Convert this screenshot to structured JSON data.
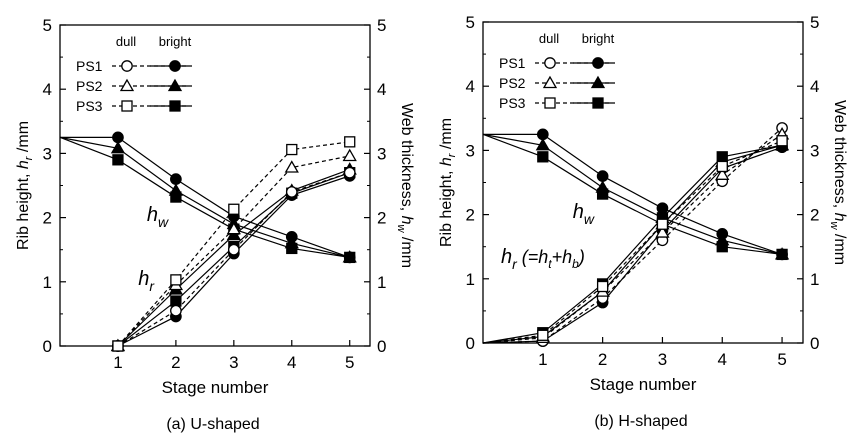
{
  "chart_data": [
    {
      "type": "line",
      "caption": "(a) U-shaped",
      "xlabel": "Stage number",
      "ylabel_left": "Rib height, h_r /mm",
      "ylabel_right": "Web thickness, h_w /mm",
      "xlim": [
        0,
        5.35
      ],
      "ylim_left": [
        0,
        5
      ],
      "ylim_right": [
        0,
        5
      ],
      "x_ticks": [
        1,
        2,
        3,
        4,
        5
      ],
      "y_ticks": [
        0,
        1,
        2,
        3,
        4,
        5
      ],
      "legend": {
        "header": [
          "dull",
          "bright"
        ],
        "entries": [
          {
            "label": "PS1",
            "marker": "circle"
          },
          {
            "label": "PS2",
            "marker": "triangle"
          },
          {
            "label": "PS3",
            "marker": "square"
          }
        ]
      },
      "annotations": [
        {
          "text": "h",
          "sub": "w",
          "x": 1.5,
          "y": 1.95
        },
        {
          "text": "h",
          "sub": "r",
          "x": 1.35,
          "y": 0.95
        }
      ],
      "series": [
        {
          "group": "hw",
          "finish": "bright",
          "marker": "circle",
          "x": [
            0,
            1,
            2,
            3,
            4,
            5
          ],
          "y": [
            3.25,
            3.25,
            2.6,
            2.02,
            1.7,
            1.38
          ]
        },
        {
          "group": "hw",
          "finish": "bright",
          "marker": "triangle",
          "x": [
            0,
            1,
            2,
            3,
            4,
            5
          ],
          "y": [
            3.25,
            3.08,
            2.42,
            1.9,
            1.6,
            1.38
          ]
        },
        {
          "group": "hw",
          "finish": "bright",
          "marker": "square",
          "x": [
            0,
            1,
            2,
            3,
            4,
            5
          ],
          "y": [
            3.25,
            2.9,
            2.32,
            1.82,
            1.52,
            1.38
          ]
        },
        {
          "group": "hr",
          "finish": "bright",
          "marker": "circle",
          "x": [
            1,
            2,
            3,
            4,
            5
          ],
          "y": [
            0,
            0.46,
            1.44,
            2.35,
            2.65
          ]
        },
        {
          "group": "hr",
          "finish": "bright",
          "marker": "triangle",
          "x": [
            1,
            2,
            3,
            4,
            5
          ],
          "y": [
            0,
            0.88,
            1.73,
            2.42,
            2.75
          ]
        },
        {
          "group": "hr",
          "finish": "bright",
          "marker": "square",
          "x": [
            1,
            2,
            3,
            4,
            5
          ],
          "y": [
            0,
            0.7,
            1.55,
            2.38,
            2.7
          ]
        },
        {
          "group": "hr",
          "finish": "dull",
          "marker": "circle",
          "x": [
            1,
            2,
            3,
            4,
            5
          ],
          "y": [
            0,
            0.55,
            1.5,
            2.4,
            2.7
          ]
        },
        {
          "group": "hr",
          "finish": "dull",
          "marker": "triangle",
          "x": [
            1,
            2,
            3,
            4,
            5
          ],
          "y": [
            0,
            0.95,
            1.82,
            2.78,
            2.96
          ]
        },
        {
          "group": "hr",
          "finish": "dull",
          "marker": "square",
          "x": [
            1,
            2,
            3,
            4,
            5
          ],
          "y": [
            0,
            1.03,
            2.13,
            3.06,
            3.18
          ]
        }
      ]
    },
    {
      "type": "line",
      "caption": "(b) H-shaped",
      "xlabel": "Stage number",
      "ylabel_left": "Rib height, h_r /mm",
      "ylabel_right": "Web thickness, h_w /mm",
      "xlim": [
        0,
        5.35
      ],
      "ylim_left": [
        0,
        5
      ],
      "ylim_right": [
        0,
        5
      ],
      "x_ticks": [
        1,
        2,
        3,
        4,
        5
      ],
      "y_ticks": [
        0,
        1,
        2,
        3,
        4,
        5
      ],
      "legend": {
        "header": [
          "dull",
          "bright"
        ],
        "entries": [
          {
            "label": "PS1",
            "marker": "circle"
          },
          {
            "label": "PS2",
            "marker": "triangle"
          },
          {
            "label": "PS3",
            "marker": "square"
          }
        ]
      },
      "annotations": [
        {
          "text": "h",
          "sub": "w",
          "x": 1.5,
          "y": 1.95
        },
        {
          "text": "h",
          "sub": "r",
          "tail": " (=h",
          "sub2": "t",
          "tail2": "+h",
          "sub3": "b",
          "tail3": ")",
          "x": 0.3,
          "y": 1.25
        }
      ],
      "series": [
        {
          "group": "hw",
          "finish": "bright",
          "marker": "circle",
          "x": [
            0,
            1,
            2,
            3,
            4,
            5
          ],
          "y": [
            3.25,
            3.25,
            2.6,
            2.1,
            1.7,
            1.38
          ]
        },
        {
          "group": "hw",
          "finish": "bright",
          "marker": "triangle",
          "x": [
            0,
            1,
            2,
            3,
            4,
            5
          ],
          "y": [
            3.25,
            3.08,
            2.42,
            1.95,
            1.6,
            1.38
          ]
        },
        {
          "group": "hw",
          "finish": "bright",
          "marker": "square",
          "x": [
            0,
            1,
            2,
            3,
            4,
            5
          ],
          "y": [
            3.25,
            2.9,
            2.32,
            1.85,
            1.5,
            1.38
          ]
        },
        {
          "group": "hr",
          "finish": "bright",
          "marker": "circle",
          "x": [
            0,
            1,
            2,
            3,
            4,
            5
          ],
          "y": [
            0,
            0.03,
            0.63,
            1.75,
            2.72,
            3.05
          ]
        },
        {
          "group": "hr",
          "finish": "bright",
          "marker": "triangle",
          "x": [
            0,
            1,
            2,
            3,
            4,
            5
          ],
          "y": [
            0,
            0.1,
            0.8,
            1.85,
            2.82,
            3.08
          ]
        },
        {
          "group": "hr",
          "finish": "bright",
          "marker": "square",
          "x": [
            0,
            1,
            2,
            3,
            4,
            5
          ],
          "y": [
            0,
            0.16,
            0.92,
            1.95,
            2.9,
            3.08
          ]
        },
        {
          "group": "hr",
          "finish": "dull",
          "marker": "circle",
          "x": [
            0,
            1,
            2,
            3,
            4,
            5
          ],
          "y": [
            0,
            0.03,
            0.7,
            1.6,
            2.52,
            3.35
          ]
        },
        {
          "group": "hr",
          "finish": "dull",
          "marker": "triangle",
          "x": [
            0,
            1,
            2,
            3,
            4,
            5
          ],
          "y": [
            0,
            0.08,
            0.8,
            1.72,
            2.62,
            3.25
          ]
        },
        {
          "group": "hr",
          "finish": "dull",
          "marker": "square",
          "x": [
            0,
            1,
            2,
            3,
            4,
            5
          ],
          "y": [
            0,
            0.12,
            0.88,
            1.85,
            2.75,
            3.15
          ]
        }
      ]
    }
  ]
}
